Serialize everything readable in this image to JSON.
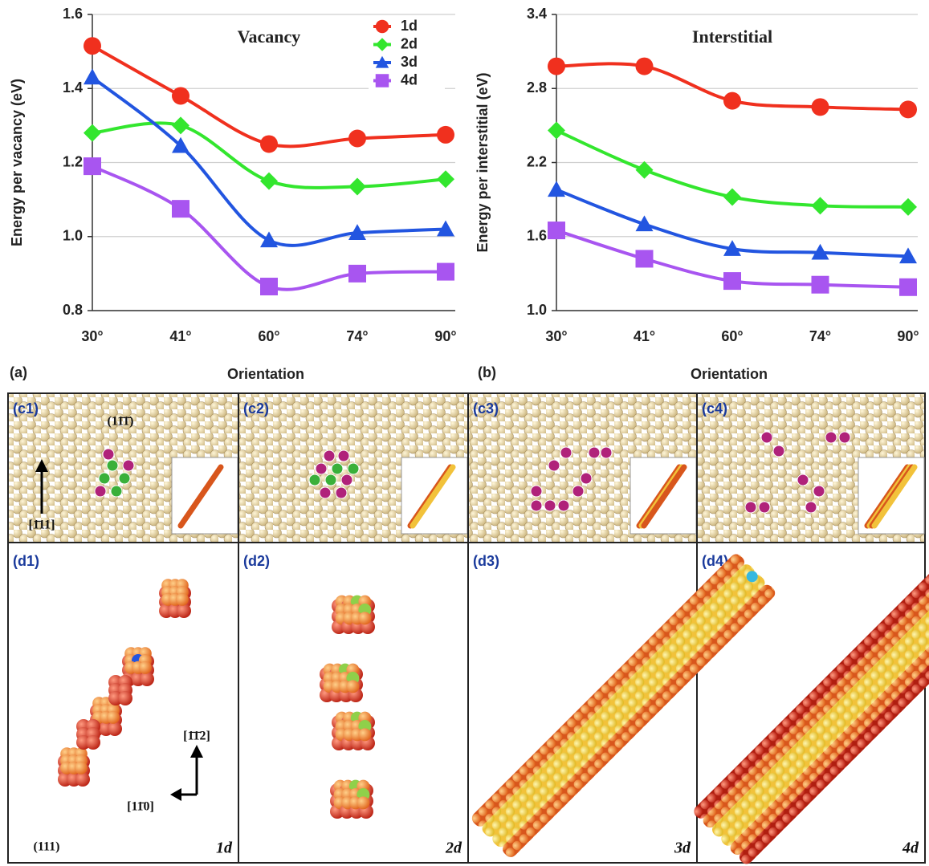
{
  "chart_data": [
    {
      "type": "line",
      "panel_label": "(a)",
      "title": "Vacancy",
      "xlabel": "Orientation",
      "ylabel": "Energy per vacancy (eV)",
      "categories": [
        "30°",
        "41°",
        "60°",
        "74°",
        "90°"
      ],
      "ylim": [
        0.8,
        1.6
      ],
      "yticks": [
        0.8,
        {
          "value": 1,
          "label": "1.0"
        },
        1.2,
        1.4,
        1.6
      ],
      "grid": true,
      "legend": "upper right",
      "series": [
        {
          "name": "1d",
          "color": "#f0301e",
          "marker": "circle",
          "values": [
            1.515,
            1.38,
            1.25,
            1.265,
            1.275
          ]
        },
        {
          "name": "2d",
          "color": "#33e62e",
          "marker": "diamond",
          "values": [
            1.28,
            1.3,
            1.15,
            1.135,
            1.155
          ]
        },
        {
          "name": "3d",
          "color": "#2255e0",
          "marker": "triangle",
          "values": [
            1.43,
            1.245,
            0.99,
            1.01,
            1.02
          ]
        },
        {
          "name": "4d",
          "color": "#a855f0",
          "marker": "square",
          "values": [
            1.19,
            1.075,
            0.865,
            0.9,
            0.905
          ]
        }
      ]
    },
    {
      "type": "line",
      "panel_label": "(b)",
      "title": "Interstitial",
      "xlabel": "Orientation",
      "ylabel": "Energy per interstitial (eV)",
      "categories": [
        "30°",
        "41°",
        "60°",
        "74°",
        "90°"
      ],
      "ylim": [
        1,
        3.4
      ],
      "yticks": [
        {
          "value": 1,
          "label": "1.0"
        },
        1.6,
        2.2,
        2.8,
        3.4
      ],
      "grid": true,
      "series": [
        {
          "color": "#f0301e",
          "marker": "circle",
          "values": [
            2.98,
            2.98,
            2.7,
            2.65,
            2.63
          ]
        },
        {
          "color": "#33e62e",
          "marker": "diamond",
          "values": [
            2.46,
            2.14,
            1.92,
            1.85,
            1.84
          ]
        },
        {
          "color": "#2255e0",
          "marker": "triangle",
          "values": [
            1.98,
            1.7,
            1.5,
            1.47,
            1.44
          ]
        },
        {
          "color": "#a855f0",
          "marker": "square",
          "values": [
            1.65,
            1.42,
            1.24,
            1.21,
            1.19
          ]
        }
      ]
    }
  ],
  "panels": {
    "top": [
      {
        "label": "(c1)",
        "plane": "(11̄1̄)",
        "direction": "[1̄11]"
      },
      {
        "label": "(c2)"
      },
      {
        "label": "(c3)"
      },
      {
        "label": "(c4)"
      }
    ],
    "bottom": [
      {
        "label": "(d1)",
        "name": "1d",
        "plane": "(111)",
        "dir_up": "[1̄1̄2]",
        "dir_left": "[11̄0]"
      },
      {
        "label": "(d2)",
        "name": "2d"
      },
      {
        "label": "(d3)",
        "name": "3d"
      },
      {
        "label": "(d4)",
        "name": "4d"
      }
    ]
  }
}
